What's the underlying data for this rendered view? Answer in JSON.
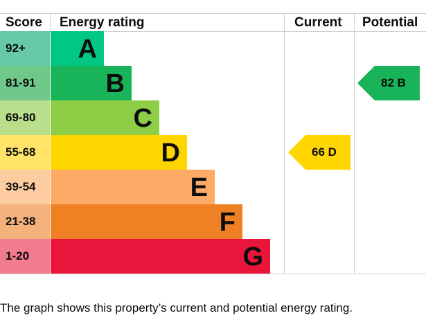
{
  "chart_data": {
    "type": "bar",
    "headers": {
      "score": "Score",
      "rating": "Energy rating",
      "current": "Current",
      "potential": "Potential"
    },
    "bands": [
      {
        "letter": "A",
        "range": "92+",
        "color": "#00c781",
        "light": "#67c9a5"
      },
      {
        "letter": "B",
        "range": "81-91",
        "color": "#19b459",
        "light": "#6ec98b"
      },
      {
        "letter": "C",
        "range": "69-80",
        "color": "#8dce46",
        "light": "#b9de8c"
      },
      {
        "letter": "D",
        "range": "55-68",
        "color": "#ffd500",
        "light": "#ffe468"
      },
      {
        "letter": "E",
        "range": "39-54",
        "color": "#fcaa65",
        "light": "#fdcca0"
      },
      {
        "letter": "F",
        "range": "21-38",
        "color": "#ef8023",
        "light": "#f5b17b"
      },
      {
        "letter": "G",
        "range": "1-20",
        "color": "#e9153b",
        "light": "#f27b8d"
      }
    ],
    "current": {
      "value": 66,
      "letter": "D",
      "label": "66  D"
    },
    "potential": {
      "value": 82,
      "letter": "B",
      "label": "82  B"
    }
  },
  "caption": "The graph shows this property’s current and potential energy rating."
}
